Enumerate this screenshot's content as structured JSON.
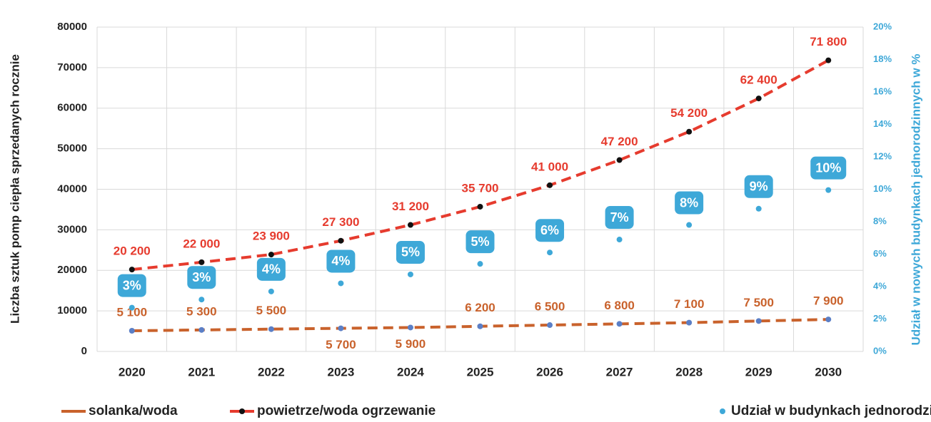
{
  "chart_data": {
    "type": "line",
    "y_label": "Liczba  sztuk pomp ciepła sprzedanych rocznie",
    "y2_label": "Udział w nowych budynkach jednorodzinnych w %",
    "categories": [
      "2020",
      "2021",
      "2022",
      "2023",
      "2024",
      "2025",
      "2026",
      "2027",
      "2028",
      "2029",
      "2030"
    ],
    "ylim": [
      0,
      80000
    ],
    "yticks": [
      0,
      10000,
      20000,
      30000,
      40000,
      50000,
      60000,
      70000,
      80000
    ],
    "y2lim": [
      0,
      20
    ],
    "y2ticks": [
      {
        "value": 0,
        "label": "0%"
      },
      {
        "value": 2,
        "label": "2%"
      },
      {
        "value": 4,
        "label": "4%"
      },
      {
        "value": 6,
        "label": "6%"
      },
      {
        "value": 8,
        "label": "8%"
      },
      {
        "value": 10,
        "label": "10%"
      },
      {
        "value": 12,
        "label": "12%"
      },
      {
        "value": 14,
        "label": "14%"
      },
      {
        "value": 16,
        "label": "16%"
      },
      {
        "value": 18,
        "label": "18%"
      },
      {
        "value": 20,
        "label": "20%"
      }
    ],
    "grid": true,
    "legend": "bottom",
    "series": [
      {
        "name": "solanka/woda",
        "color": "#c9622c",
        "marker_color": "#5b7fc6",
        "values": [
          5100,
          5300,
          5500,
          5700,
          5900,
          6200,
          6500,
          6800,
          7100,
          7500,
          7900
        ],
        "value_labels": [
          "5 100",
          "5 300",
          "5 500",
          "5 700",
          "5 900",
          "6 200",
          "6 500",
          "6 800",
          "7 100",
          "7 500",
          "7 900"
        ]
      },
      {
        "name": "powietrze/woda ogrzewanie",
        "color": "#e63b2e",
        "marker_color": "#111111",
        "values": [
          20200,
          22000,
          23900,
          27300,
          31200,
          35700,
          41000,
          47200,
          54200,
          62400,
          71800
        ],
        "value_labels": [
          "20 200",
          "22 000",
          "23 900",
          "27 300",
          "31 200",
          "35 700",
          "41 000",
          "47 200",
          "54 200",
          "62 400",
          "71 800"
        ]
      },
      {
        "name": "Udział w budynkach jednorodzinnych",
        "color": "#3ea8d8",
        "axis": "y2",
        "values": [
          2.7,
          3.2,
          3.7,
          4.2,
          4.75,
          5.4,
          6.1,
          6.9,
          7.8,
          8.8,
          9.95
        ],
        "value_labels": [
          "3%",
          "3%",
          "4%",
          "4%",
          "5%",
          "5%",
          "6%",
          "7%",
          "8%",
          "9%",
          "10%"
        ]
      }
    ]
  }
}
